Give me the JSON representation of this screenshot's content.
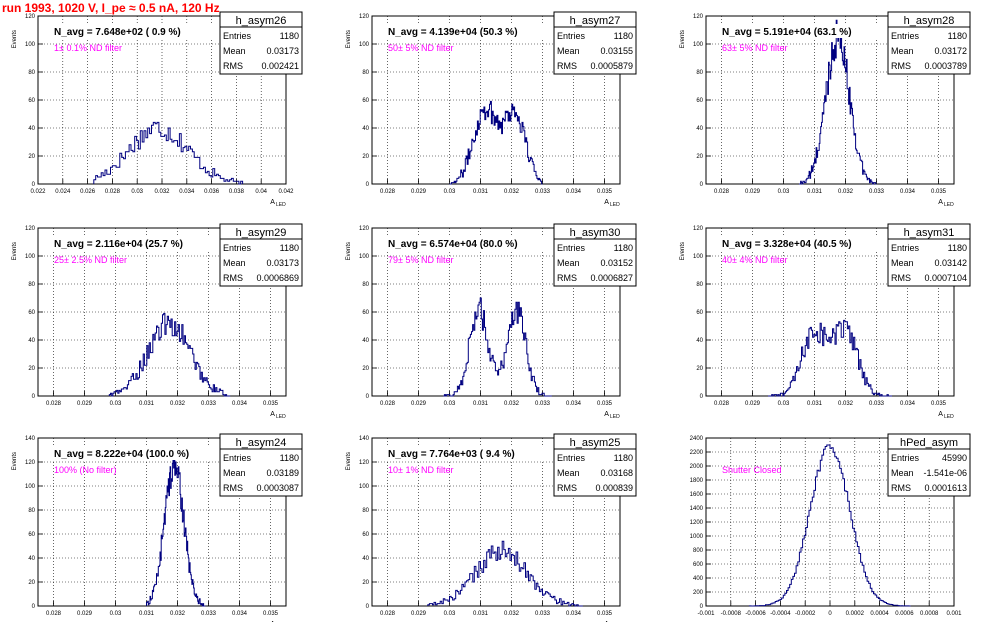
{
  "page_title": "run 1993,  1020 V, I_pe ≈ 0.5 nA, 120 Hz",
  "colors": {
    "histogram_line": "#000080",
    "annotation": "#ff00ff",
    "title_red": "#ff0000",
    "grid": "#000000",
    "background": "#ffffff"
  },
  "chart_data": [
    {
      "type": "histogram",
      "name": "h_asym26",
      "ylabel": "Events",
      "xlabel": "A_LED",
      "header_text": "N_avg = 7.648e+02 ( 0.9 %)",
      "annotation": "1± 0.1% ND filter",
      "stats": {
        "entries": "1180",
        "mean": "0.03173",
        "rms": "0.002421"
      },
      "xlim": [
        0.022,
        0.042
      ],
      "ylim": [
        0,
        120
      ],
      "xticks": [
        "0.022",
        "0.024",
        "0.026",
        "0.028",
        "0.03",
        "0.032",
        "0.034",
        "0.036",
        "0.038",
        "0.04",
        "0.042"
      ],
      "yticks": [
        "0",
        "20",
        "40",
        "60",
        "80",
        "100",
        "120"
      ],
      "peaks": [
        {
          "mu": 0.03173,
          "sigma": 0.0024,
          "peak": 40
        }
      ],
      "data_range": [
        0.0265,
        0.0385
      ],
      "nbins": 80,
      "grid": true,
      "legend": "top-right"
    },
    {
      "type": "histogram",
      "name": "h_asym27",
      "ylabel": "Events",
      "xlabel": "A_LED",
      "header_text": "N_avg = 4.139e+04 (50.3 %)",
      "annotation": "50± 5% ND filter",
      "stats": {
        "entries": "1180",
        "mean": "0.03155",
        "rms": "0.0005879"
      },
      "xlim": [
        0.0275,
        0.0355
      ],
      "ylim": [
        0,
        120
      ],
      "xticks": [
        "0.028",
        "0.029",
        "0.03",
        "0.031",
        "0.032",
        "0.033",
        "0.034",
        "0.035"
      ],
      "yticks": [
        "0",
        "20",
        "40",
        "60",
        "80",
        "100",
        "120"
      ],
      "peaks": [
        {
          "mu": 0.03115,
          "sigma": 0.00038,
          "peak": 53
        },
        {
          "mu": 0.0321,
          "sigma": 0.00035,
          "peak": 50
        }
      ],
      "data_range": [
        0.03,
        0.033
      ],
      "nbins": 100,
      "grid": true,
      "legend": "top-right"
    },
    {
      "type": "histogram",
      "name": "h_asym28",
      "ylabel": "Events",
      "xlabel": "A_LED",
      "header_text": "N_avg = 5.191e+04 (63.1 %)",
      "annotation": "63± 5% ND filter",
      "stats": {
        "entries": "1180",
        "mean": "0.03172",
        "rms": "0.0003789"
      },
      "xlim": [
        0.0275,
        0.0355
      ],
      "ylim": [
        0,
        120
      ],
      "xticks": [
        "0.028",
        "0.029",
        "0.03",
        "0.031",
        "0.032",
        "0.033",
        "0.034",
        "0.035"
      ],
      "yticks": [
        "0",
        "20",
        "40",
        "60",
        "80",
        "100",
        "120"
      ],
      "peaks": [
        {
          "mu": 0.03175,
          "sigma": 0.00038,
          "peak": 105
        }
      ],
      "data_range": [
        0.0305,
        0.033
      ],
      "nbins": 100,
      "grid": true,
      "legend": "top-right"
    },
    {
      "type": "histogram",
      "name": "h_asym29",
      "ylabel": "Events",
      "xlabel": "A_LED",
      "header_text": "N_avg = 2.116e+04 (25.7 %)",
      "annotation": "25± 2.5% ND filter",
      "stats": {
        "entries": "1180",
        "mean": "0.03173",
        "rms": "0.0006869"
      },
      "xlim": [
        0.0275,
        0.0355
      ],
      "ylim": [
        0,
        120
      ],
      "xticks": [
        "0.028",
        "0.029",
        "0.03",
        "0.031",
        "0.032",
        "0.033",
        "0.034",
        "0.035"
      ],
      "yticks": [
        "0",
        "20",
        "40",
        "60",
        "80",
        "100",
        "120"
      ],
      "peaks": [
        {
          "mu": 0.03173,
          "sigma": 0.00068,
          "peak": 52
        }
      ],
      "data_range": [
        0.0298,
        0.0337
      ],
      "nbins": 100,
      "grid": true,
      "legend": "top-right"
    },
    {
      "type": "histogram",
      "name": "h_asym30",
      "ylabel": "Events",
      "xlabel": "A_LED",
      "header_text": "N_avg = 6.574e+04 (80.0 %)",
      "annotation": "79± 5% ND filter",
      "stats": {
        "entries": "1180",
        "mean": "0.03152",
        "rms": "0.0006827"
      },
      "xlim": [
        0.0275,
        0.0355
      ],
      "ylim": [
        0,
        120
      ],
      "xticks": [
        "0.028",
        "0.029",
        "0.03",
        "0.031",
        "0.032",
        "0.033",
        "0.034",
        "0.035"
      ],
      "yticks": [
        "0",
        "20",
        "40",
        "60",
        "80",
        "100",
        "120"
      ],
      "peaks": [
        {
          "mu": 0.03095,
          "sigma": 0.0003,
          "peak": 62
        },
        {
          "mu": 0.03215,
          "sigma": 0.0003,
          "peak": 62
        }
      ],
      "data_range": [
        0.0298,
        0.0333
      ],
      "nbins": 100,
      "grid": true,
      "legend": "top-right"
    },
    {
      "type": "histogram",
      "name": "h_asym31",
      "ylabel": "Events",
      "xlabel": "A_LED",
      "header_text": "N_avg = 3.328e+04 (40.5 %)",
      "annotation": "40± 4% ND filter",
      "stats": {
        "entries": "1180",
        "mean": "0.03142",
        "rms": "0.0007104"
      },
      "xlim": [
        0.0275,
        0.0355
      ],
      "ylim": [
        0,
        120
      ],
      "xticks": [
        "0.028",
        "0.029",
        "0.03",
        "0.031",
        "0.032",
        "0.033",
        "0.034",
        "0.035"
      ],
      "yticks": [
        "0",
        "20",
        "40",
        "60",
        "80",
        "100",
        "120"
      ],
      "peaks": [
        {
          "mu": 0.031,
          "sigma": 0.0004,
          "peak": 46
        },
        {
          "mu": 0.032,
          "sigma": 0.00038,
          "peak": 46
        }
      ],
      "data_range": [
        0.0295,
        0.0335
      ],
      "nbins": 100,
      "grid": true,
      "legend": "top-right"
    },
    {
      "type": "histogram",
      "name": "h_asym24",
      "ylabel": "Events",
      "xlabel": "A_LED",
      "header_text": "N_avg = 8.222e+04 (100.0 %)",
      "annotation": "100% (No filter)",
      "stats": {
        "entries": "1180",
        "mean": "0.03189",
        "rms": "0.0003087"
      },
      "xlim": [
        0.0275,
        0.0355
      ],
      "ylim": [
        0,
        140
      ],
      "xticks": [
        "0.028",
        "0.029",
        "0.03",
        "0.031",
        "0.032",
        "0.033",
        "0.034",
        "0.035"
      ],
      "yticks": [
        "0",
        "20",
        "40",
        "60",
        "80",
        "100",
        "120",
        "140"
      ],
      "peaks": [
        {
          "mu": 0.03189,
          "sigma": 0.00031,
          "peak": 118
        }
      ],
      "data_range": [
        0.031,
        0.0329
      ],
      "nbins": 100,
      "grid": true,
      "legend": "top-right"
    },
    {
      "type": "histogram",
      "name": "h_asym25",
      "ylabel": "Events",
      "xlabel": "A_LED",
      "header_text": "N_avg = 7.764e+03 ( 9.4 %)",
      "annotation": "10± 1% ND filter",
      "stats": {
        "entries": "1180",
        "mean": "0.03168",
        "rms": "0.000839"
      },
      "xlim": [
        0.0275,
        0.0355
      ],
      "ylim": [
        0,
        140
      ],
      "xticks": [
        "0.028",
        "0.029",
        "0.03",
        "0.031",
        "0.032",
        "0.033",
        "0.034",
        "0.035"
      ],
      "yticks": [
        "0",
        "20",
        "40",
        "60",
        "80",
        "100",
        "120",
        "140"
      ],
      "peaks": [
        {
          "mu": 0.03168,
          "sigma": 0.00084,
          "peak": 45
        }
      ],
      "data_range": [
        0.0293,
        0.0343
      ],
      "nbins": 100,
      "grid": true,
      "legend": "top-right"
    },
    {
      "type": "histogram",
      "name": "hPed_asym",
      "ylabel": "",
      "xlabel": "",
      "header_text": "",
      "annotation": "Shutter Closed",
      "stats": {
        "entries": "45990",
        "mean": "-1.541e-06",
        "rms": "0.0001613"
      },
      "xlim": [
        -0.001,
        0.001
      ],
      "ylim": [
        0,
        2400
      ],
      "xticks": [
        "-0.001",
        "-0.0008",
        "-0.0006",
        "-0.0004",
        "-0.0002",
        "0",
        "0.0002",
        "0.0004",
        "0.0006",
        "0.0008",
        "0.001"
      ],
      "yticks": [
        "0",
        "200",
        "400",
        "600",
        "800",
        "1000",
        "1200",
        "1400",
        "1600",
        "1800",
        "2000",
        "2200",
        "2400"
      ],
      "peaks": [
        {
          "mu": 0.0,
          "sigma": 0.00016,
          "peak": 2280
        }
      ],
      "data_range": [
        -0.00065,
        0.00065
      ],
      "nbins": 100,
      "grid": true,
      "legend": "top-right"
    }
  ]
}
